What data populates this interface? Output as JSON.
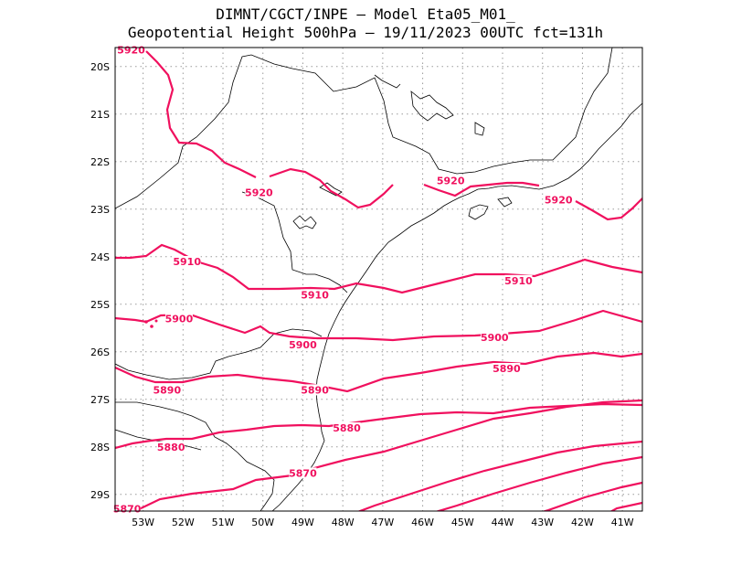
{
  "header": {
    "line1": "DIMNT/CGCT/INPE –  Model Eta05_M01_",
    "line2": "Geopotential Height 500hPa –  19/11/2023 00UTC fct=131h"
  },
  "axes": {
    "lat_labels": [
      "20S",
      "21S",
      "22S",
      "23S",
      "24S",
      "25S",
      "26S",
      "27S",
      "28S",
      "29S"
    ],
    "lon_labels": [
      "53W",
      "52W",
      "51W",
      "50W",
      "49W",
      "48W",
      "47W",
      "46W",
      "45W",
      "44W",
      "43W",
      "42W",
      "41W"
    ],
    "grid": "dotted"
  },
  "contours": {
    "color": "#f0105e",
    "labels": [
      {
        "text": "5920",
        "lon": -53.3,
        "lat": -19.65
      },
      {
        "text": "5920",
        "lon": -50.1,
        "lat": -22.65
      },
      {
        "text": "5920",
        "lon": -45.3,
        "lat": -22.4
      },
      {
        "text": "5920",
        "lon": -42.6,
        "lat": -22.8
      },
      {
        "text": "5910",
        "lon": -51.9,
        "lat": -24.1
      },
      {
        "text": "5910",
        "lon": -48.7,
        "lat": -24.8
      },
      {
        "text": "5910",
        "lon": -43.6,
        "lat": -24.5
      },
      {
        "text": "5900",
        "lon": -52.1,
        "lat": -25.3
      },
      {
        "text": "5900",
        "lon": -49.0,
        "lat": -25.85
      },
      {
        "text": "5900",
        "lon": -44.2,
        "lat": -25.7
      },
      {
        "text": "5890",
        "lon": -52.4,
        "lat": -26.8
      },
      {
        "text": "5890",
        "lon": -48.7,
        "lat": -26.8
      },
      {
        "text": "5890",
        "lon": -43.9,
        "lat": -26.35
      },
      {
        "text": "5880",
        "lon": -52.3,
        "lat": -28.0
      },
      {
        "text": "5880",
        "lon": -47.9,
        "lat": -27.6
      },
      {
        "text": "5870",
        "lon": -49.0,
        "lat": -28.55
      },
      {
        "text": "5870",
        "lon": -53.4,
        "lat": -29.3
      }
    ]
  }
}
